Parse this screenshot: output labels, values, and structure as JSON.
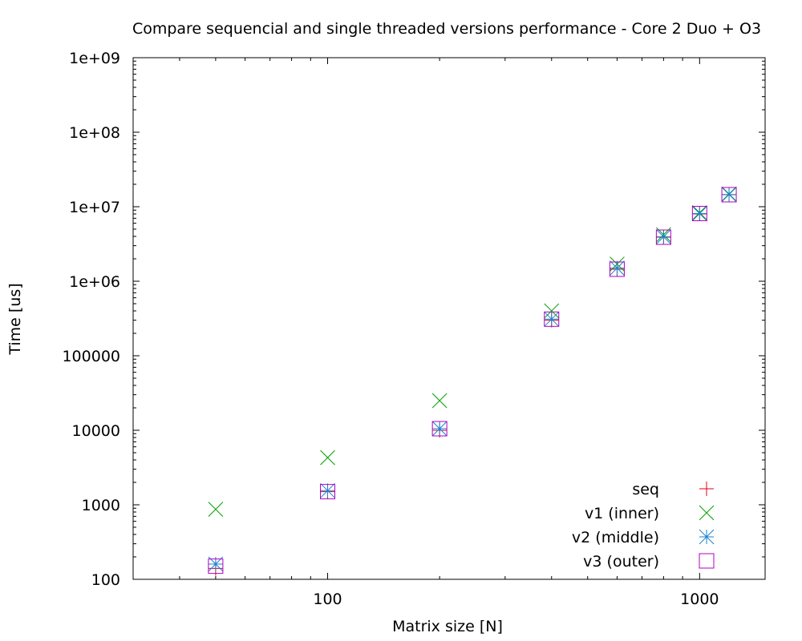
{
  "chart_data": {
    "type": "scatter",
    "title": "Compare sequencial and single threaded versions performance - Core 2 Duo + O3",
    "xlabel": "Matrix size [N]",
    "ylabel": "Time [us]",
    "xscale": "log",
    "yscale": "log",
    "xlim": [
      30,
      1500
    ],
    "ylim": [
      100,
      1000000000
    ],
    "grid": false,
    "legend_position": "bottom-right",
    "xtick_labels": [
      "100",
      "1000"
    ],
    "xtick_values": [
      100,
      1000
    ],
    "ytick_labels": [
      "100",
      "1000",
      "10000",
      "100000",
      "1e+06",
      "1e+07",
      "1e+08",
      "1e+09"
    ],
    "ytick_values": [
      100,
      1000,
      10000,
      100000,
      1000000,
      10000000,
      100000000,
      1000000000
    ],
    "x": [
      50,
      100,
      200,
      400,
      600,
      800,
      1000,
      1200
    ],
    "series": [
      {
        "name": "seq",
        "marker": "plus",
        "color": "#e0001a",
        "values": [
          140,
          1500,
          10000,
          300000,
          1450000,
          3900000,
          8000000,
          14500000
        ]
      },
      {
        "name": "v1 (inner)",
        "marker": "cross",
        "color": "#00a000",
        "values": [
          870,
          4300,
          25000,
          400000,
          1700000,
          4200000,
          8300000,
          14800000
        ]
      },
      {
        "name": "v2 (middle)",
        "marker": "star",
        "color": "#1a82d2",
        "values": [
          160,
          1550,
          10500,
          310000,
          1500000,
          3950000,
          8100000,
          14600000
        ]
      },
      {
        "name": "v3 (outer)",
        "marker": "square",
        "color": "#b000c0",
        "values": [
          150,
          1500,
          10500,
          310000,
          1450000,
          3900000,
          8100000,
          14500000
        ]
      }
    ]
  }
}
